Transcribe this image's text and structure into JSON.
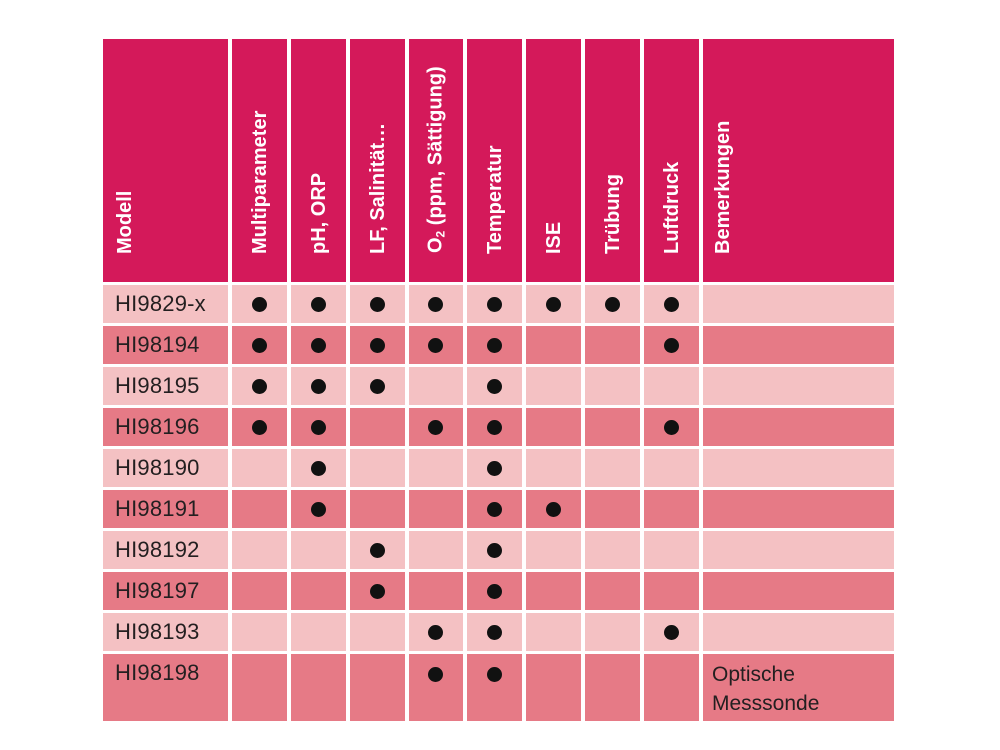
{
  "table": {
    "headers": [
      {
        "pre": "Modell",
        "sub": "",
        "post": ""
      },
      {
        "pre": "Multiparameter",
        "sub": "",
        "post": ""
      },
      {
        "pre": "pH, ORP",
        "sub": "",
        "post": ""
      },
      {
        "pre": "LF, Salinität…",
        "sub": "",
        "post": ""
      },
      {
        "pre": "O",
        "sub": "2",
        "post": " (ppm, Sättigung)"
      },
      {
        "pre": "Temperatur",
        "sub": "",
        "post": ""
      },
      {
        "pre": "ISE",
        "sub": "",
        "post": ""
      },
      {
        "pre": "Trübung",
        "sub": "",
        "post": ""
      },
      {
        "pre": "Luftdruck",
        "sub": "",
        "post": ""
      },
      {
        "pre": "Bemerkungen",
        "sub": "",
        "post": ""
      }
    ],
    "rows": [
      {
        "model": "HI9829-x",
        "marks": [
          true,
          true,
          true,
          true,
          true,
          true,
          true,
          true
        ],
        "note": ""
      },
      {
        "model": "HI98194",
        "marks": [
          true,
          true,
          true,
          true,
          true,
          false,
          false,
          true
        ],
        "note": ""
      },
      {
        "model": "HI98195",
        "marks": [
          true,
          true,
          true,
          false,
          true,
          false,
          false,
          false
        ],
        "note": ""
      },
      {
        "model": "HI98196",
        "marks": [
          true,
          true,
          false,
          true,
          true,
          false,
          false,
          true
        ],
        "note": ""
      },
      {
        "model": "HI98190",
        "marks": [
          false,
          true,
          false,
          false,
          true,
          false,
          false,
          false
        ],
        "note": ""
      },
      {
        "model": "HI98191",
        "marks": [
          false,
          true,
          false,
          false,
          true,
          true,
          false,
          false
        ],
        "note": ""
      },
      {
        "model": "HI98192",
        "marks": [
          false,
          false,
          true,
          false,
          true,
          false,
          false,
          false
        ],
        "note": ""
      },
      {
        "model": "HI98197",
        "marks": [
          false,
          false,
          true,
          false,
          true,
          false,
          false,
          false
        ],
        "note": ""
      },
      {
        "model": "HI98193",
        "marks": [
          false,
          false,
          false,
          true,
          true,
          false,
          false,
          true
        ],
        "note": ""
      },
      {
        "model": "HI98198",
        "marks": [
          false,
          false,
          false,
          true,
          true,
          false,
          false,
          false
        ],
        "note": "Optische\nMesssonde"
      }
    ]
  },
  "colors": {
    "header_bg": "#d4195a",
    "row_light": "#f4c1c3",
    "row_dark": "#e67a86",
    "mark": "#111111"
  }
}
